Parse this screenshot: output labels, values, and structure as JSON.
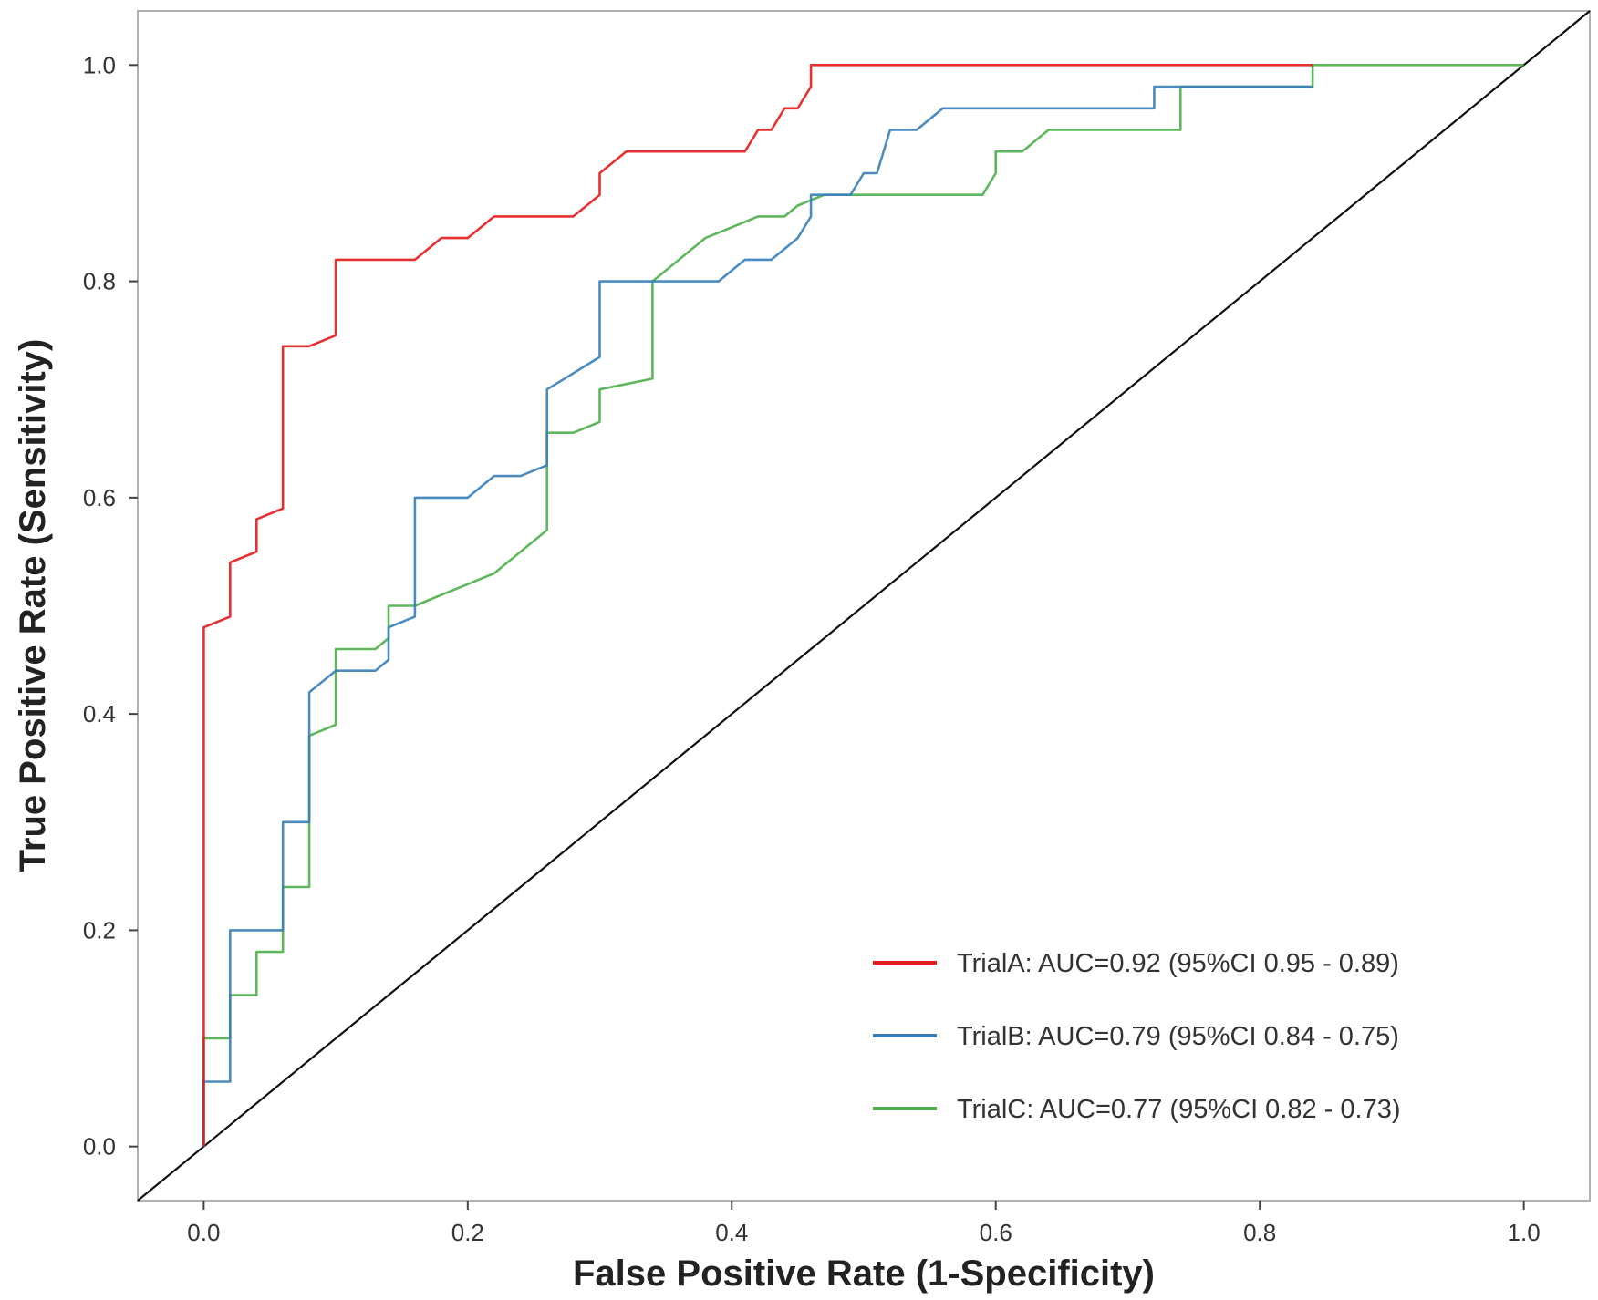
{
  "chart_data": {
    "type": "line",
    "title": "",
    "xlabel": "False Positive Rate (1-Specificity)",
    "ylabel": "True Positive Rate (Sensitivity)",
    "xlim": [
      -0.05,
      1.05
    ],
    "ylim": [
      -0.05,
      1.05
    ],
    "x_ticks": [
      0.0,
      0.2,
      0.4,
      0.6,
      0.8,
      1.0
    ],
    "y_ticks": [
      0.0,
      0.2,
      0.4,
      0.6,
      0.8,
      1.0
    ],
    "x_tick_labels": [
      "0.0",
      "0.2",
      "0.4",
      "0.6",
      "0.8",
      "1.0"
    ],
    "y_tick_labels": [
      "0.0",
      "0.2",
      "0.4",
      "0.6",
      "0.8",
      "1.0"
    ],
    "grid": false,
    "legend_position": "bottom-right",
    "reference_line": {
      "x": [
        0,
        1
      ],
      "y": [
        0,
        1
      ],
      "color": "#111111"
    },
    "series": [
      {
        "name": "TrialA: AUC=0.92 (95%CI 0.95 - 0.89)",
        "color": "#e41a1c",
        "x": [
          0,
          0,
          0.02,
          0.02,
          0.04,
          0.04,
          0.06,
          0.06,
          0.08,
          0.1,
          0.1,
          0.16,
          0.18,
          0.2,
          0.22,
          0.28,
          0.3,
          0.3,
          0.32,
          0.41,
          0.42,
          0.43,
          0.44,
          0.45,
          0.46,
          0.46,
          0.84
        ],
        "y": [
          0,
          0.48,
          0.49,
          0.54,
          0.55,
          0.58,
          0.59,
          0.74,
          0.74,
          0.75,
          0.82,
          0.82,
          0.84,
          0.84,
          0.86,
          0.86,
          0.88,
          0.9,
          0.92,
          0.92,
          0.94,
          0.94,
          0.96,
          0.96,
          0.98,
          1.0,
          1.0
        ]
      },
      {
        "name": "TrialB: AUC=0.79 (95%CI 0.84 - 0.75)",
        "color": "#377eb8",
        "x": [
          0,
          0,
          0.02,
          0.02,
          0.06,
          0.06,
          0.08,
          0.08,
          0.1,
          0.13,
          0.14,
          0.14,
          0.16,
          0.16,
          0.2,
          0.22,
          0.24,
          0.26,
          0.26,
          0.3,
          0.3,
          0.39,
          0.41,
          0.43,
          0.44,
          0.45,
          0.46,
          0.46,
          0.49,
          0.5,
          0.51,
          0.52,
          0.54,
          0.56,
          0.72,
          0.72,
          0.74,
          0.84
        ],
        "y": [
          0,
          0.06,
          0.06,
          0.2,
          0.2,
          0.3,
          0.3,
          0.42,
          0.44,
          0.44,
          0.45,
          0.48,
          0.49,
          0.6,
          0.6,
          0.62,
          0.62,
          0.63,
          0.7,
          0.73,
          0.8,
          0.8,
          0.82,
          0.82,
          0.83,
          0.84,
          0.86,
          0.88,
          0.88,
          0.9,
          0.9,
          0.94,
          0.94,
          0.96,
          0.96,
          0.98,
          0.98,
          0.98
        ]
      },
      {
        "name": "TrialC: AUC=0.77 (95%CI 0.82 - 0.73)",
        "color": "#4daf4a",
        "x": [
          0,
          0,
          0.02,
          0.02,
          0.04,
          0.04,
          0.06,
          0.06,
          0.08,
          0.08,
          0.1,
          0.1,
          0.13,
          0.14,
          0.14,
          0.16,
          0.18,
          0.2,
          0.22,
          0.24,
          0.26,
          0.26,
          0.28,
          0.3,
          0.3,
          0.34,
          0.34,
          0.36,
          0.38,
          0.4,
          0.42,
          0.43,
          0.44,
          0.45,
          0.47,
          0.5,
          0.59,
          0.6,
          0.6,
          0.62,
          0.64,
          0.74,
          0.74,
          0.84,
          0.84,
          1.0
        ],
        "y": [
          0,
          0.1,
          0.1,
          0.14,
          0.14,
          0.18,
          0.18,
          0.24,
          0.24,
          0.38,
          0.39,
          0.46,
          0.46,
          0.47,
          0.5,
          0.5,
          0.51,
          0.52,
          0.53,
          0.55,
          0.57,
          0.66,
          0.66,
          0.67,
          0.7,
          0.71,
          0.8,
          0.82,
          0.84,
          0.85,
          0.86,
          0.86,
          0.86,
          0.87,
          0.88,
          0.88,
          0.88,
          0.9,
          0.92,
          0.92,
          0.94,
          0.94,
          0.98,
          0.98,
          1.0,
          1.0
        ]
      }
    ]
  }
}
